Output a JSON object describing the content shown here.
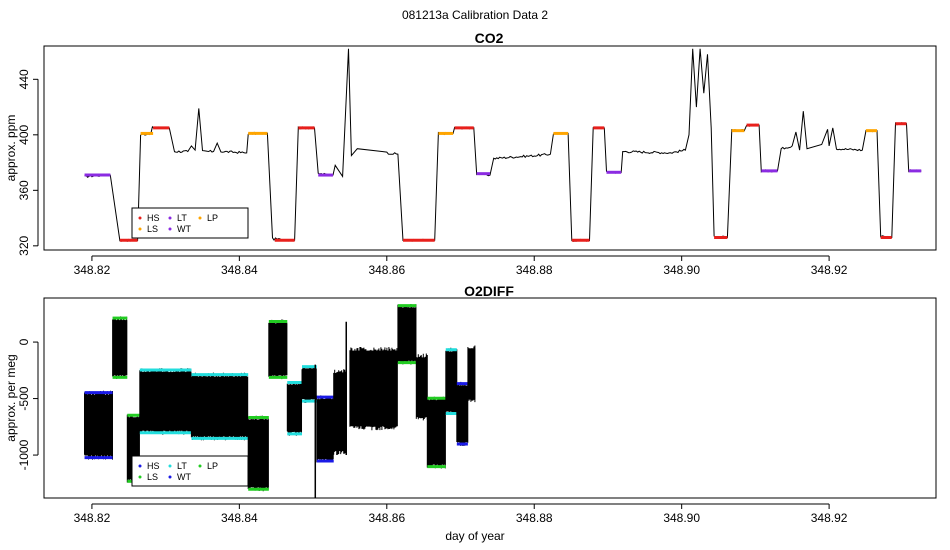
{
  "suptitle": "081213a   Calibration Data 2",
  "colors": {
    "HS": "#e8201c",
    "LS": "#ffa500",
    "LT": "#8b2be2",
    "WT": "#8b2be2",
    "LP": "#ffa500",
    "O2_HS": "#1a1ae6",
    "O2_LS": "#22cc22",
    "O2_LT": "#22dddd",
    "O2_WT": "#1a1ae6",
    "O2_LP": "#22cc22"
  },
  "chart_data": [
    {
      "type": "line",
      "title": "CO2",
      "xlabel": "",
      "ylabel": "approx. ppm",
      "xlim": [
        348.8135,
        348.9345
      ],
      "ylim": [
        317,
        464
      ],
      "xticks": [
        348.82,
        348.84,
        348.86,
        348.88,
        348.9,
        348.92
      ],
      "xtick_labels": [
        "348.82",
        "348.84",
        "348.86",
        "348.88",
        "348.90",
        "348.92"
      ],
      "yticks": [
        320,
        360,
        400,
        440
      ],
      "ytick_labels": [
        "320",
        "360",
        "400",
        "440"
      ],
      "legend": {
        "position": "bottom-left",
        "entries": [
          "HS",
          "LS",
          "LT",
          "WT",
          "LP"
        ]
      },
      "trace": [
        [
          348.819,
          370
        ],
        [
          348.822,
          371
        ],
        [
          348.8225,
          371
        ],
        [
          348.8238,
          324
        ],
        [
          348.8262,
          324
        ],
        [
          348.8266,
          400
        ],
        [
          348.828,
          401
        ],
        [
          348.8282,
          405
        ],
        [
          348.8305,
          405
        ],
        [
          348.8312,
          388
        ],
        [
          348.833,
          388
        ],
        [
          348.8335,
          392
        ],
        [
          348.834,
          389
        ],
        [
          348.8345,
          419
        ],
        [
          348.835,
          388
        ],
        [
          348.8365,
          388
        ],
        [
          348.837,
          394
        ],
        [
          348.8375,
          388
        ],
        [
          348.841,
          387
        ],
        [
          348.8412,
          401
        ],
        [
          348.8438,
          401
        ],
        [
          348.8445,
          325
        ],
        [
          348.8475,
          324
        ],
        [
          348.848,
          405
        ],
        [
          348.8502,
          405
        ],
        [
          348.8507,
          372
        ],
        [
          348.8527,
          371
        ],
        [
          348.853,
          378
        ],
        [
          348.854,
          370
        ],
        [
          348.8548,
          462
        ],
        [
          348.8552,
          385
        ],
        [
          348.856,
          390
        ],
        [
          348.86,
          387
        ],
        [
          348.8615,
          386
        ],
        [
          348.8622,
          324
        ],
        [
          348.8665,
          324
        ],
        [
          348.867,
          401
        ],
        [
          348.869,
          401
        ],
        [
          348.8692,
          405
        ],
        [
          348.8718,
          405
        ],
        [
          348.8722,
          372
        ],
        [
          348.874,
          371
        ],
        [
          348.8745,
          383
        ],
        [
          348.88,
          385
        ],
        [
          348.8822,
          386
        ],
        [
          348.8826,
          401
        ],
        [
          348.8846,
          401
        ],
        [
          348.8851,
          324
        ],
        [
          348.8875,
          324
        ],
        [
          348.888,
          405
        ],
        [
          348.8895,
          405
        ],
        [
          348.8898,
          373
        ],
        [
          348.8918,
          373
        ],
        [
          348.892,
          388
        ],
        [
          348.8985,
          387
        ],
        [
          348.9005,
          389
        ],
        [
          348.901,
          400
        ],
        [
          348.9015,
          462
        ],
        [
          348.902,
          420
        ],
        [
          348.9025,
          462
        ],
        [
          348.903,
          430
        ],
        [
          348.9035,
          458
        ],
        [
          348.904,
          405
        ],
        [
          348.9044,
          327
        ],
        [
          348.9062,
          326
        ],
        [
          348.9068,
          403
        ],
        [
          348.9085,
          403
        ],
        [
          348.9088,
          407
        ],
        [
          348.9105,
          407
        ],
        [
          348.9108,
          374
        ],
        [
          348.913,
          374
        ],
        [
          348.9135,
          390
        ],
        [
          348.915,
          392
        ],
        [
          348.9155,
          402
        ],
        [
          348.916,
          389
        ],
        [
          348.9165,
          417
        ],
        [
          348.917,
          390
        ],
        [
          348.919,
          393
        ],
        [
          348.9198,
          404
        ],
        [
          348.92,
          392
        ],
        [
          348.9205,
          405
        ],
        [
          348.921,
          390
        ],
        [
          348.9245,
          389
        ],
        [
          348.925,
          403
        ],
        [
          348.9265,
          403
        ],
        [
          348.927,
          327
        ],
        [
          348.9285,
          326
        ],
        [
          348.929,
          408
        ],
        [
          348.9305,
          408
        ],
        [
          348.9308,
          374
        ],
        [
          348.9325,
          374
        ]
      ],
      "calibration_segments": [
        {
          "name": "LT",
          "x": [
            348.819,
            348.8225
          ],
          "y": 371
        },
        {
          "name": "HS",
          "x": [
            348.8238,
            348.8262
          ],
          "y": 324
        },
        {
          "name": "LP",
          "x": [
            348.8266,
            348.8283
          ],
          "y": 401
        },
        {
          "name": "HS",
          "x": [
            348.8283,
            348.8305
          ],
          "y": 405
        },
        {
          "name": "LP",
          "x": [
            348.8412,
            348.8438
          ],
          "y": 401
        },
        {
          "name": "HS",
          "x": [
            348.8448,
            348.8475
          ],
          "y": 324
        },
        {
          "name": "HS",
          "x": [
            348.848,
            348.8502
          ],
          "y": 405
        },
        {
          "name": "WT",
          "x": [
            348.8507,
            348.8527
          ],
          "y": 371
        },
        {
          "name": "HS",
          "x": [
            348.8622,
            348.8665
          ],
          "y": 324
        },
        {
          "name": "LP",
          "x": [
            348.867,
            348.869
          ],
          "y": 401
        },
        {
          "name": "HS",
          "x": [
            348.8692,
            348.8718
          ],
          "y": 405
        },
        {
          "name": "LT",
          "x": [
            348.8722,
            348.874
          ],
          "y": 372
        },
        {
          "name": "LP",
          "x": [
            348.8826,
            348.8846
          ],
          "y": 401
        },
        {
          "name": "HS",
          "x": [
            348.8851,
            348.8875
          ],
          "y": 324
        },
        {
          "name": "HS",
          "x": [
            348.888,
            348.8895
          ],
          "y": 405
        },
        {
          "name": "WT",
          "x": [
            348.8898,
            348.8918
          ],
          "y": 373
        },
        {
          "name": "HS",
          "x": [
            348.9044,
            348.9062
          ],
          "y": 326
        },
        {
          "name": "LP",
          "x": [
            348.9068,
            348.9085
          ],
          "y": 403
        },
        {
          "name": "HS",
          "x": [
            348.9088,
            348.9105
          ],
          "y": 407
        },
        {
          "name": "LT",
          "x": [
            348.9108,
            348.913
          ],
          "y": 374
        },
        {
          "name": "LP",
          "x": [
            348.925,
            348.9265
          ],
          "y": 403
        },
        {
          "name": "HS",
          "x": [
            348.927,
            348.9285
          ],
          "y": 326
        },
        {
          "name": "HS",
          "x": [
            348.929,
            348.9305
          ],
          "y": 408
        },
        {
          "name": "WT",
          "x": [
            348.9308,
            348.9325
          ],
          "y": 374
        }
      ]
    },
    {
      "type": "line",
      "title": "O2DIFF",
      "xlabel": "day of year",
      "ylabel": "approx. per meg",
      "xlim": [
        348.8135,
        348.9345
      ],
      "ylim": [
        -1380,
        390
      ],
      "xticks": [
        348.82,
        348.84,
        348.86,
        348.88,
        348.9,
        348.92
      ],
      "xtick_labels": [
        "348.82",
        "348.84",
        "348.86",
        "348.88",
        "348.90",
        "348.92"
      ],
      "yticks": [
        0,
        -500,
        -1000
      ],
      "ytick_labels": [
        "0",
        "-500",
        "-1000"
      ],
      "legend": {
        "position": "bottom-left",
        "entries": [
          "HS",
          "LS",
          "LT",
          "WT",
          "LP"
        ]
      },
      "bands": [
        {
          "x": [
            348.819,
            348.8228
          ],
          "lo": -1040,
          "hi": -430,
          "lo_color": "O2_HS",
          "hi_color": "O2_HS"
        },
        {
          "x": [
            348.8228,
            348.8248
          ],
          "lo": -330,
          "hi": 230,
          "lo_color": "O2_LS",
          "hi_color": "O2_LS"
        },
        {
          "x": [
            348.8248,
            348.8265
          ],
          "lo": -1250,
          "hi": -630,
          "lo_color": "O2_LS",
          "hi_color": "O2_LS"
        },
        {
          "x": [
            348.8265,
            348.8335
          ],
          "lo": -820,
          "hi": -230,
          "lo_color": "O2_LT",
          "hi_color": "O2_LT"
        },
        {
          "x": [
            348.8335,
            348.8412
          ],
          "lo": -870,
          "hi": -270,
          "lo_color": "O2_LT",
          "hi_color": "O2_LT"
        },
        {
          "x": [
            348.8412,
            348.844
          ],
          "lo": -1320,
          "hi": -650,
          "lo_color": "O2_LS",
          "hi_color": "O2_LS"
        },
        {
          "x": [
            348.844,
            348.8465
          ],
          "lo": -330,
          "hi": 200,
          "lo_color": "O2_LS",
          "hi_color": "O2_LS"
        },
        {
          "x": [
            348.8465,
            348.8485
          ],
          "lo": -830,
          "hi": -340,
          "lo_color": "O2_LT",
          "hi_color": "O2_LT"
        },
        {
          "x": [
            348.8485,
            348.8505
          ],
          "lo": -540,
          "hi": -200,
          "lo_color": "O2_LT",
          "hi_color": "O2_LT"
        },
        {
          "x": [
            348.8505,
            348.8528
          ],
          "lo": -1070,
          "hi": -470,
          "lo_color": "O2_HS",
          "hi_color": "O2_HS"
        },
        {
          "x": [
            348.8528,
            348.8545
          ],
          "lo": -1000,
          "hi": -240,
          "lo_color": "none",
          "hi_color": "none"
        },
        {
          "x": [
            348.855,
            348.8615
          ],
          "lo": -780,
          "hi": -40,
          "lo_color": "none",
          "hi_color": "none"
        },
        {
          "x": [
            348.8615,
            348.864
          ],
          "lo": -200,
          "hi": 340,
          "lo_color": "O2_LS",
          "hi_color": "O2_LS"
        },
        {
          "x": [
            348.864,
            348.8655
          ],
          "lo": -700,
          "hi": -100,
          "lo_color": "none",
          "hi_color": "none"
        },
        {
          "x": [
            348.8655,
            348.868
          ],
          "lo": -1120,
          "hi": -480,
          "lo_color": "O2_LS",
          "hi_color": "O2_LS"
        },
        {
          "x": [
            348.868,
            348.8695
          ],
          "lo": -650,
          "hi": -50,
          "lo_color": "O2_LT",
          "hi_color": "O2_LT"
        },
        {
          "x": [
            348.8695,
            348.871
          ],
          "lo": -920,
          "hi": -350,
          "lo_color": "O2_HS",
          "hi_color": "O2_HS"
        },
        {
          "x": [
            348.871,
            348.872
          ],
          "lo": -540,
          "hi": -20,
          "lo_color": "none",
          "hi_color": "none"
        }
      ],
      "spikes": [
        {
          "x": 348.8503,
          "lo": -1380,
          "hi": -200
        },
        {
          "x": 348.8545,
          "lo": -1000,
          "hi": 180
        }
      ]
    }
  ]
}
